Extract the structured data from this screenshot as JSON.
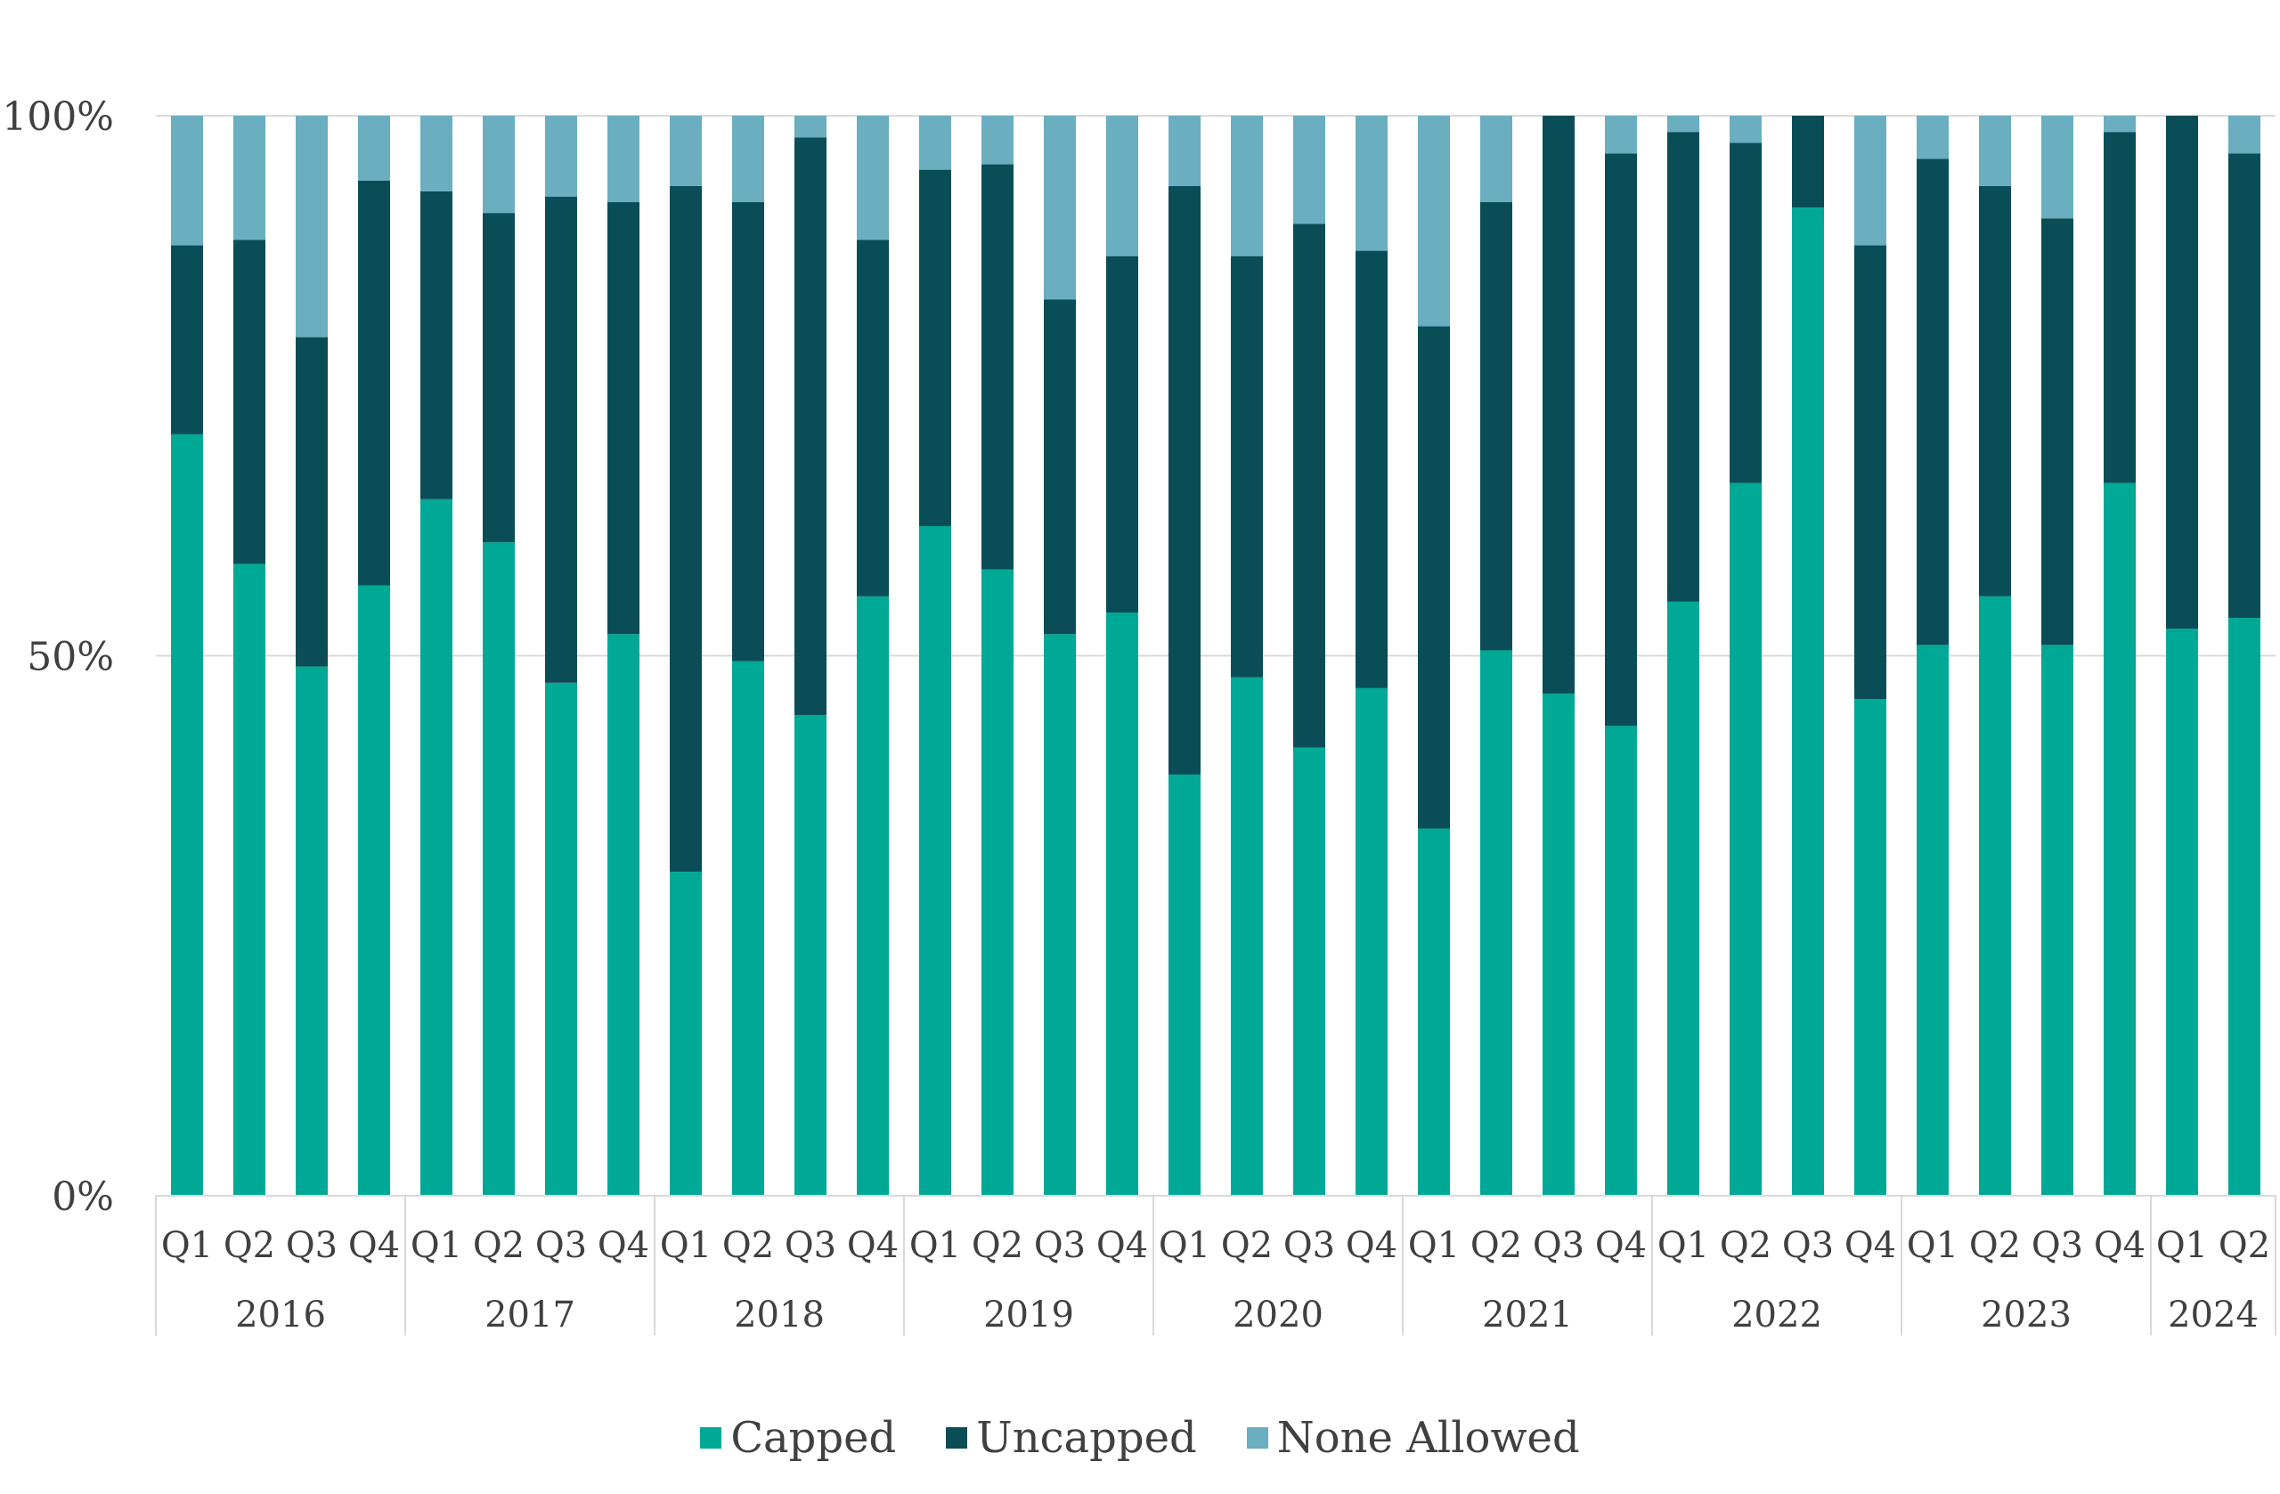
{
  "chart_data": {
    "type": "bar",
    "stacked": true,
    "percent": true,
    "years": [
      "2016",
      "2017",
      "2018",
      "2019",
      "2020",
      "2021",
      "2022",
      "2023",
      "2024"
    ],
    "categories": [
      [
        "Q1",
        "2016"
      ],
      [
        "Q2",
        "2016"
      ],
      [
        "Q3",
        "2016"
      ],
      [
        "Q4",
        "2016"
      ],
      [
        "Q1",
        "2017"
      ],
      [
        "Q2",
        "2017"
      ],
      [
        "Q3",
        "2017"
      ],
      [
        "Q4",
        "2017"
      ],
      [
        "Q1",
        "2018"
      ],
      [
        "Q2",
        "2018"
      ],
      [
        "Q3",
        "2018"
      ],
      [
        "Q4",
        "2018"
      ],
      [
        "Q1",
        "2019"
      ],
      [
        "Q2",
        "2019"
      ],
      [
        "Q3",
        "2019"
      ],
      [
        "Q4",
        "2019"
      ],
      [
        "Q1",
        "2020"
      ],
      [
        "Q2",
        "2020"
      ],
      [
        "Q3",
        "2020"
      ],
      [
        "Q4",
        "2020"
      ],
      [
        "Q1",
        "2021"
      ],
      [
        "Q2",
        "2021"
      ],
      [
        "Q3",
        "2021"
      ],
      [
        "Q4",
        "2021"
      ],
      [
        "Q1",
        "2022"
      ],
      [
        "Q2",
        "2022"
      ],
      [
        "Q3",
        "2022"
      ],
      [
        "Q4",
        "2022"
      ],
      [
        "Q1",
        "2023"
      ],
      [
        "Q2",
        "2023"
      ],
      [
        "Q3",
        "2023"
      ],
      [
        "Q4",
        "2023"
      ],
      [
        "Q1",
        "2024"
      ],
      [
        "Q2",
        "2024"
      ]
    ],
    "series": [
      {
        "name": "Capped",
        "color": "#00a896",
        "values": [
          70.5,
          58.5,
          49,
          56.5,
          64.5,
          60.5,
          47.5,
          52,
          30,
          49.5,
          44.5,
          55.5,
          62,
          58,
          52,
          54,
          39,
          48,
          41.5,
          47,
          34,
          50.5,
          46.5,
          43.5,
          55,
          66,
          91.5,
          46,
          51,
          55.5,
          51,
          66,
          52.5,
          53.5
        ]
      },
      {
        "name": "Uncapped",
        "color": "#0a4d57",
        "values": [
          17.5,
          30,
          30.5,
          37.5,
          28.5,
          30.5,
          45,
          40,
          63.5,
          42.5,
          53.5,
          33,
          33,
          37.5,
          31,
          33,
          54.5,
          39,
          48.5,
          40.5,
          46.5,
          41.5,
          53.5,
          53,
          43.5,
          31.5,
          8.5,
          42,
          45,
          38,
          39.5,
          32.5,
          47.5,
          43
        ]
      },
      {
        "name": "None Allowed",
        "color": "#6aaec0",
        "values": [
          12,
          11.5,
          20.5,
          6,
          7,
          9,
          7.5,
          8,
          6.5,
          8,
          2,
          11.5,
          5,
          4.5,
          17,
          13,
          6.5,
          13,
          10,
          12.5,
          19.5,
          8,
          0,
          3.5,
          1.5,
          2.5,
          0,
          12,
          4,
          6.5,
          9.5,
          1.5,
          0,
          3.5
        ]
      }
    ],
    "yticks": [
      "0%",
      "50%",
      "100%"
    ],
    "ylim": [
      0,
      100
    ],
    "legend_position": "bottom",
    "grid": true
  }
}
